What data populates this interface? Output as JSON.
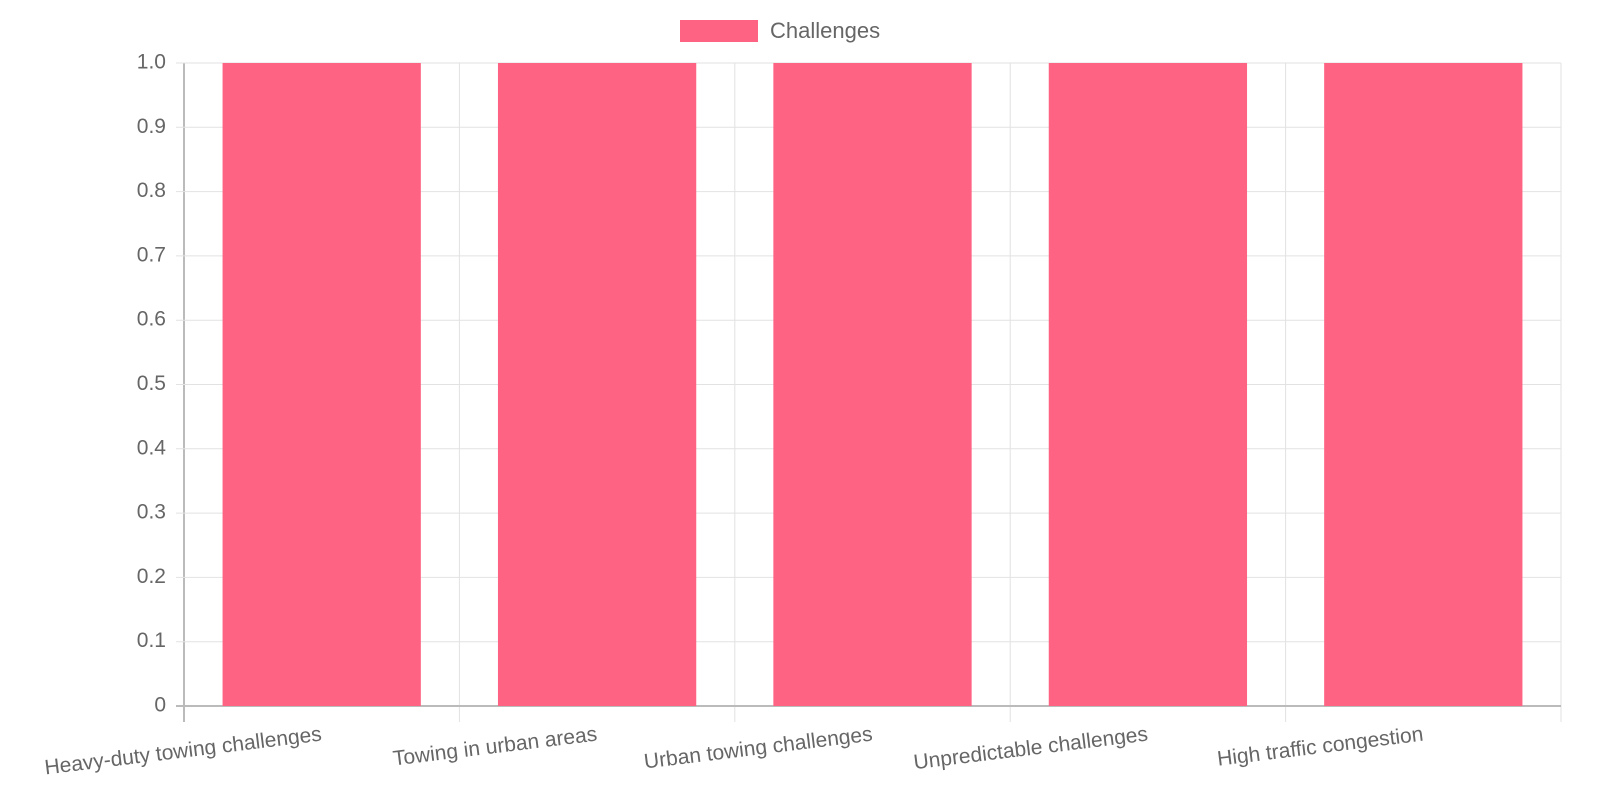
{
  "chart_data": {
    "type": "bar",
    "categories": [
      "Heavy-duty towing challenges",
      "Towing in urban areas",
      "Urban towing challenges",
      "Unpredictable challenges",
      "High traffic congestion"
    ],
    "series": [
      {
        "name": "Challenges",
        "color": "#ff6384",
        "values": [
          1,
          1,
          1,
          1,
          1
        ]
      }
    ],
    "ylim": [
      0,
      1
    ],
    "yticks": [
      0,
      0.1,
      0.2,
      0.3,
      0.4,
      0.5,
      0.6,
      0.7,
      0.8,
      0.9,
      {
        "value": 1,
        "label": "1.0"
      }
    ],
    "grid": true,
    "legend": "top"
  }
}
